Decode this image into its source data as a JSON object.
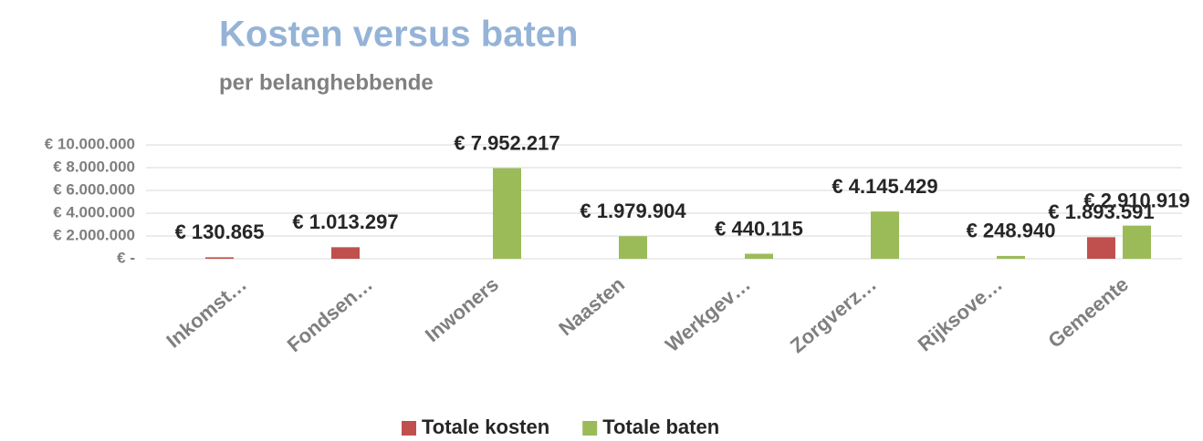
{
  "chart_data": {
    "type": "bar",
    "title": "Kosten versus baten",
    "subtitle": "per belanghebbende",
    "categories": [
      "Inkomst…",
      "Fondsen…",
      "Inwoners",
      "Naasten",
      "Werkgev…",
      "Zorgverz…",
      "Rijksove…",
      "Gemeente"
    ],
    "series": [
      {
        "name": "Totale kosten",
        "color": "#c0504d",
        "values": [
          130865,
          1013297,
          null,
          null,
          null,
          null,
          null,
          1893591
        ],
        "value_labels": [
          "€ 130.865",
          "€ 1.013.297",
          null,
          null,
          null,
          null,
          null,
          "€ 1.893.591"
        ]
      },
      {
        "name": "Totale baten",
        "color": "#9bbb59",
        "values": [
          null,
          null,
          7952217,
          1979904,
          440115,
          4145429,
          248940,
          2910919
        ],
        "value_labels": [
          null,
          null,
          "€ 7.952.217",
          "€ 1.979.904",
          "€ 440.115",
          "€ 4.145.429",
          "€ 248.940",
          "€ 2.910.919"
        ]
      }
    ],
    "ylim": [
      0,
      10000000
    ],
    "yticks": [
      {
        "value": 0,
        "label": "€ -"
      },
      {
        "value": 2000000,
        "label": "€ 2.000.000"
      },
      {
        "value": 4000000,
        "label": "€ 4.000.000"
      },
      {
        "value": 6000000,
        "label": "€ 6.000.000"
      },
      {
        "value": 8000000,
        "label": "€ 8.000.000"
      },
      {
        "value": 10000000,
        "label": "€ 10.000.000"
      }
    ],
    "grid": true,
    "legend": "bottom"
  }
}
